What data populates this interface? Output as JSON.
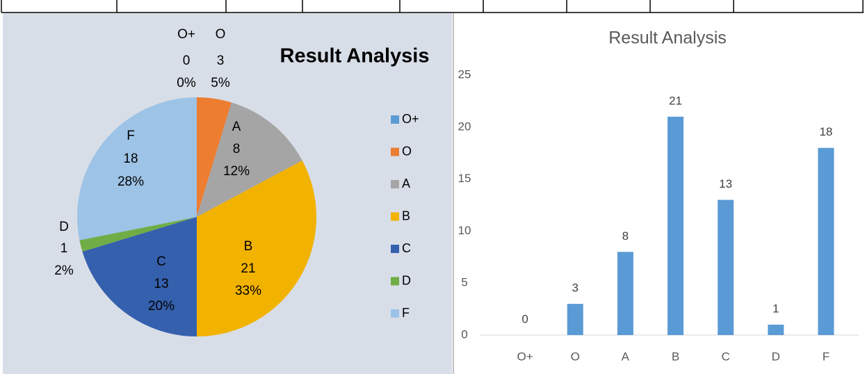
{
  "chart_data": [
    {
      "type": "pie",
      "title": "Result Analysis",
      "categories": [
        "O+",
        "O",
        "A",
        "B",
        "C",
        "D",
        "F"
      ],
      "values": [
        0,
        3,
        8,
        21,
        13,
        1,
        18
      ],
      "percent_labels": [
        "0%",
        "5%",
        "12%",
        "33%",
        "20%",
        "2%",
        "28%"
      ],
      "colors": [
        "#5b9bd5",
        "#ed7d31",
        "#a5a5a5",
        "#f2b200",
        "#3560ad",
        "#70ad47",
        "#9dc3e6"
      ],
      "legend": "right"
    },
    {
      "type": "bar",
      "title": "Result Analysis",
      "categories": [
        "O+",
        "O",
        "A",
        "B",
        "C",
        "D",
        "F"
      ],
      "values": [
        0,
        3,
        8,
        21,
        13,
        1,
        18
      ],
      "color": "#5b9bd5",
      "ylim": [
        0,
        25
      ],
      "yticks": [
        0,
        5,
        10,
        15,
        20,
        25
      ],
      "grid": false
    }
  ]
}
